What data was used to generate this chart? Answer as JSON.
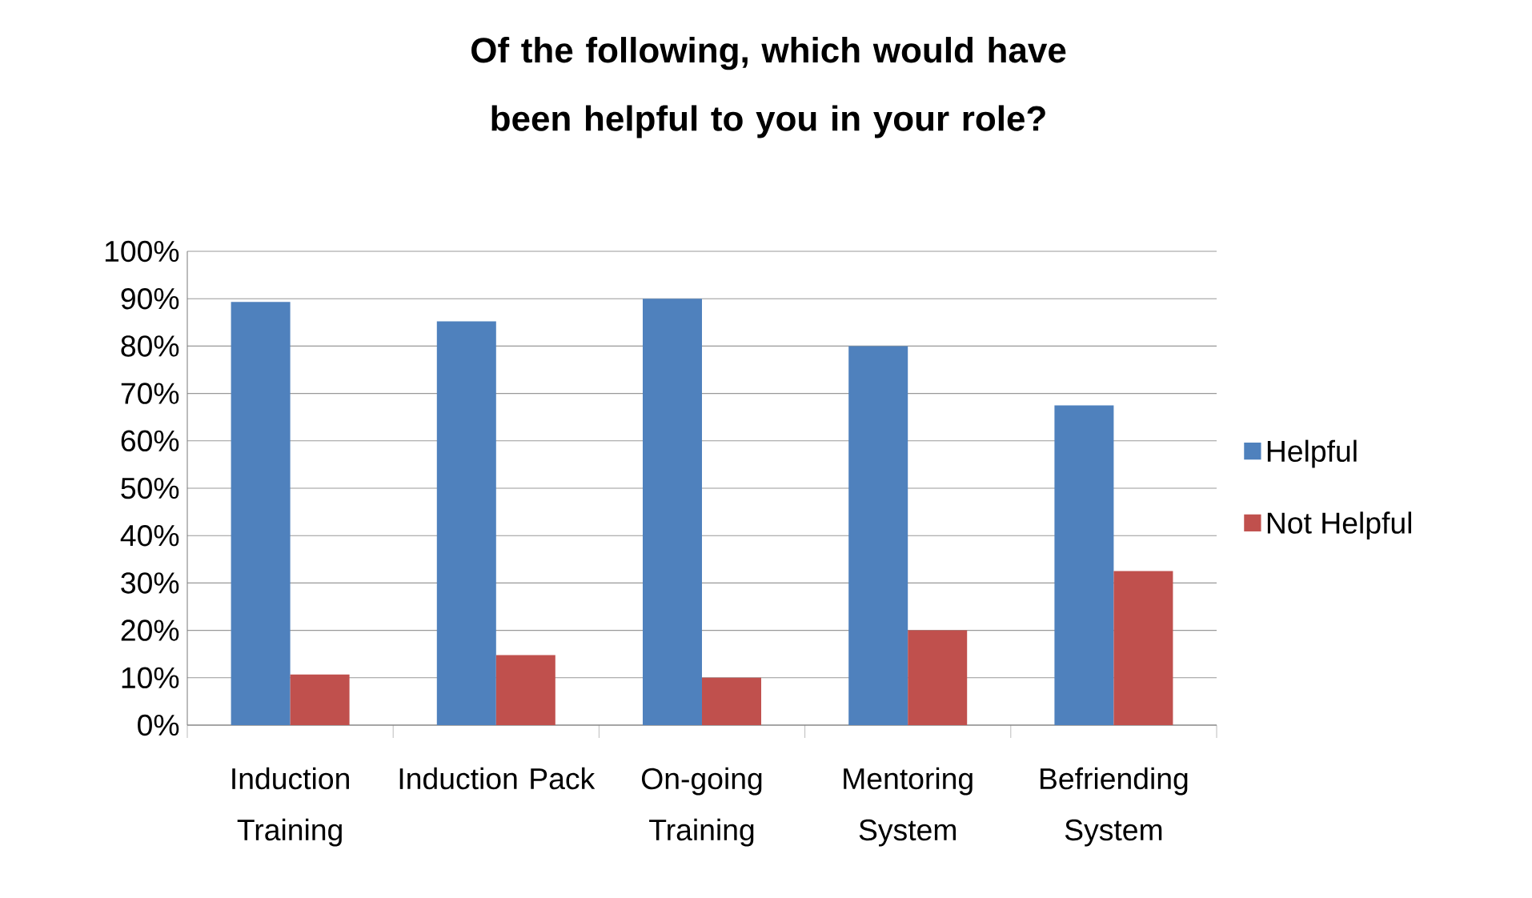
{
  "chart_data": {
    "type": "bar",
    "title": "Of the following, which would have been helpful to you in your role?",
    "categories": [
      "Induction Training",
      "Induction Pack",
      "On-going Training",
      "Mentoring System",
      "Befriending System"
    ],
    "series": [
      {
        "name": "Helpful",
        "color": "#4f81bd",
        "values": [
          89.3,
          85.2,
          90,
          80,
          67.5
        ]
      },
      {
        "name": "Not Helpful",
        "color": "#c0504d",
        "values": [
          10.7,
          14.8,
          10,
          20,
          32.5
        ]
      }
    ],
    "ylim": [
      0,
      100
    ],
    "yticks": [
      {
        "value": 0,
        "label": "0%"
      },
      {
        "value": 10,
        "label": "10%"
      },
      {
        "value": 20,
        "label": "20%"
      },
      {
        "value": 30,
        "label": "30%"
      },
      {
        "value": 40,
        "label": "40%"
      },
      {
        "value": 50,
        "label": "50%"
      },
      {
        "value": 60,
        "label": "60%"
      },
      {
        "value": 70,
        "label": "70%"
      },
      {
        "value": 80,
        "label": "80%"
      },
      {
        "value": 90,
        "label": "90%"
      },
      {
        "value": 100,
        "label": "100%"
      }
    ],
    "grid": "y",
    "legend": "right"
  }
}
